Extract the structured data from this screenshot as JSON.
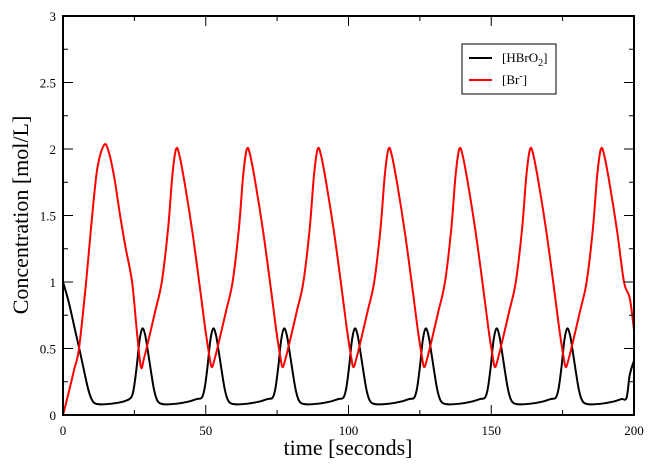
{
  "chart_data": {
    "type": "line",
    "title": "",
    "xlabel": "time [seconds]",
    "ylabel": "Concentration [mol/L]",
    "xlim": [
      0,
      200
    ],
    "ylim": [
      0,
      3
    ],
    "xticks": [
      0,
      50,
      100,
      150,
      200
    ],
    "xtick_labels": [
      "0",
      "50",
      "100",
      "150",
      "200"
    ],
    "x_minor_step": 25,
    "yticks": [
      0,
      0.5,
      1,
      1.5,
      2,
      2.5,
      3
    ],
    "ytick_labels": [
      "0",
      "0.5",
      "1",
      "1.5",
      "2",
      "2.5",
      "3"
    ],
    "y_minor_step": 0.25,
    "grid": false,
    "legend_position": "top-right",
    "series": [
      {
        "name": "[HBrO2]",
        "legend_main": "[HBrO",
        "legend_sub": "2",
        "legend_end": "]",
        "color": "#000000",
        "cycle_anchor": [
          [
            -4,
            0.13
          ],
          [
            -3,
            0.2
          ],
          [
            -2,
            0.36
          ],
          [
            -1,
            0.56
          ],
          [
            0,
            0.65
          ],
          [
            1,
            0.6
          ],
          [
            2,
            0.47
          ],
          [
            3,
            0.33
          ],
          [
            4,
            0.2
          ],
          [
            5,
            0.12
          ],
          [
            6,
            0.09
          ],
          [
            8,
            0.08
          ],
          [
            12,
            0.085
          ],
          [
            16,
            0.1
          ],
          [
            19,
            0.12
          ],
          [
            20.8,
            0.13
          ]
        ],
        "cycle_centers": [
          27.8,
          52.6,
          77.4,
          102.2,
          127.0,
          151.8,
          176.6
        ],
        "start_points": [
          [
            0,
            1.0
          ],
          [
            2,
            0.85
          ],
          [
            4,
            0.66
          ],
          [
            6,
            0.47
          ],
          [
            8,
            0.27
          ],
          [
            9,
            0.18
          ],
          [
            10,
            0.12
          ],
          [
            11,
            0.09
          ],
          [
            13,
            0.08
          ],
          [
            17,
            0.085
          ],
          [
            21,
            0.1
          ]
        ],
        "end_points": [
          [
            198.5,
            0.3
          ],
          [
            200,
            0.41
          ]
        ]
      },
      {
        "name": "[Br-]",
        "legend_main": "[Br",
        "legend_sup": "-",
        "legend_end": "]",
        "color": "#ff0000",
        "cycle_anchor": [
          [
            0,
            0.36
          ],
          [
            1,
            0.42
          ],
          [
            2.5,
            0.55
          ],
          [
            5,
            0.78
          ],
          [
            7.3,
            1.0
          ],
          [
            9.5,
            1.4
          ],
          [
            11,
            1.8
          ],
          [
            12.3,
            2.0
          ],
          [
            13.5,
            1.95
          ],
          [
            15.5,
            1.72
          ],
          [
            18,
            1.38
          ],
          [
            20.4,
            1.0
          ],
          [
            22.5,
            0.65
          ],
          [
            24,
            0.44
          ]
        ],
        "cycle_centers": [
          27.3,
          52.1,
          76.9,
          101.7,
          126.5,
          151.3,
          176.1
        ],
        "start_points": [
          [
            0,
            0
          ],
          [
            2,
            0.17
          ],
          [
            4,
            0.35
          ],
          [
            5.6,
            0.5
          ],
          [
            8.1,
            1.0
          ],
          [
            10,
            1.45
          ],
          [
            12,
            1.85
          ],
          [
            14.4,
            2.03
          ],
          [
            16,
            1.98
          ],
          [
            18,
            1.78
          ],
          [
            20,
            1.5
          ],
          [
            22,
            1.25
          ],
          [
            24.2,
            1.0
          ],
          [
            26,
            0.6
          ]
        ],
        "end_points": [
          [
            198.5,
            0.88
          ],
          [
            200,
            0.64
          ]
        ]
      }
    ]
  }
}
